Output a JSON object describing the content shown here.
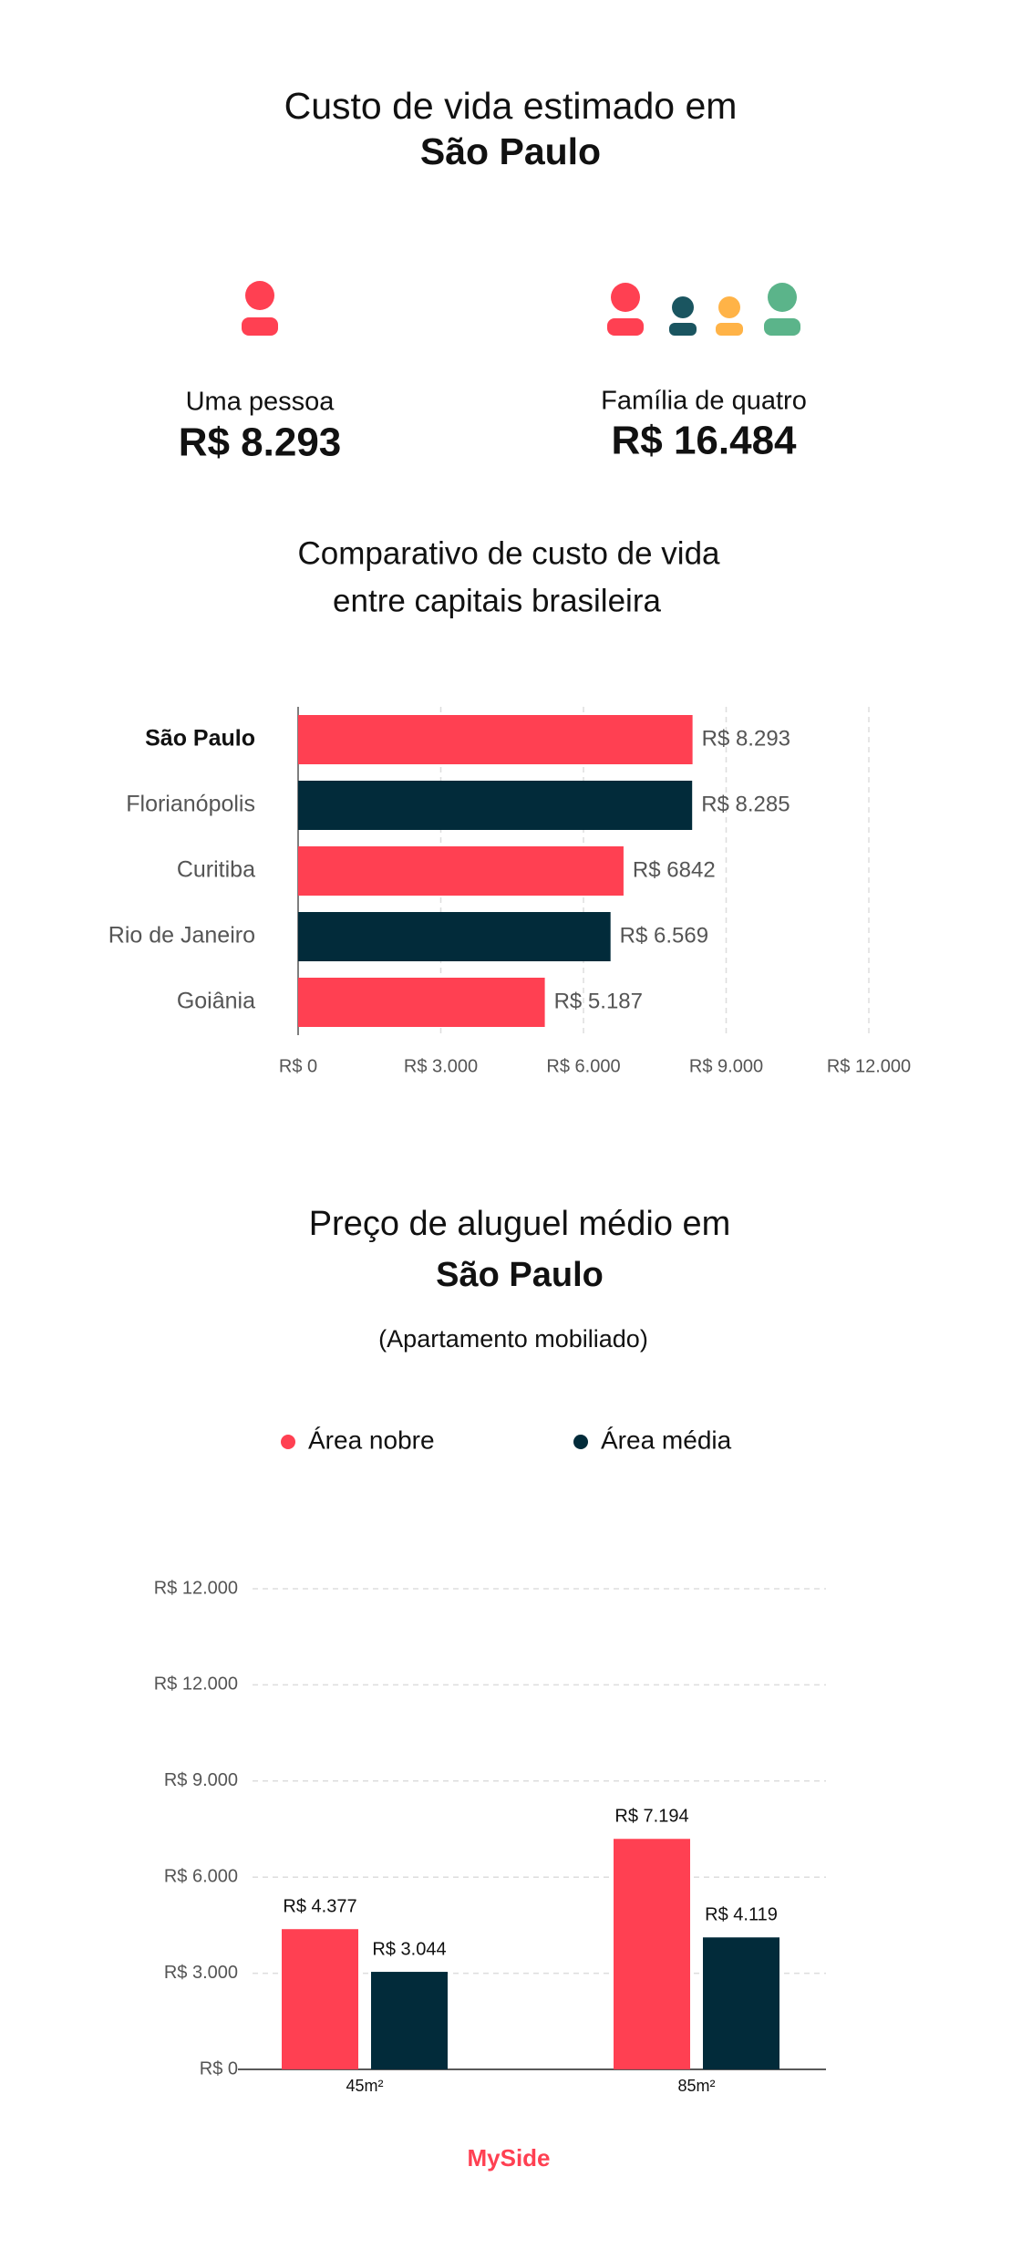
{
  "header": {
    "title": "Custo de vida estimado em",
    "city": "São Paulo"
  },
  "stats": [
    {
      "label": "Uma pessoa",
      "value": "R$ 8.293"
    },
    {
      "label": "Família de quatro",
      "value": "R$ 16.484"
    }
  ],
  "chart_data": [
    {
      "type": "hbar",
      "title": "Comparativo de custo de vida",
      "subtitle": "entre capitais brasileira",
      "categories": [
        "São Paulo",
        "Florianópolis",
        "Curitiba",
        "Rio de Janeiro",
        "Goiânia"
      ],
      "values": [
        8293,
        8285,
        6842,
        6569,
        5187
      ],
      "value_labels": [
        "R$ 8.293",
        "R$ 8.285",
        "R$ 6842",
        "R$ 6.569",
        "R$ 5.187"
      ],
      "colors": [
        "#ff4052",
        "#022b3a",
        "#ff4052",
        "#022b3a",
        "#ff4052"
      ],
      "xlim": [
        0,
        12000
      ],
      "xticks": [
        {
          "value": 0,
          "label": "R$ 0"
        },
        {
          "value": 3000,
          "label": "R$ 3.000"
        },
        {
          "value": 6000,
          "label": "R$ 6.000"
        },
        {
          "value": 9000,
          "label": "R$ 9.000"
        },
        {
          "value": 12000,
          "label": "R$ 12.000"
        }
      ],
      "grid": true
    },
    {
      "type": "bar",
      "title": "Preço de aluguel médio em",
      "subtitle": "São Paulo",
      "note": "(Apartamento mobiliado)",
      "categories": [
        "45m²",
        "85m²"
      ],
      "series": [
        {
          "name": "Área nobre",
          "color": "#ff4052",
          "values": [
            4377,
            7194
          ],
          "value_labels": [
            "R$ 4.377",
            "R$ 7.194"
          ]
        },
        {
          "name": "Área média",
          "color": "#022b3a",
          "values": [
            3044,
            4119
          ],
          "value_labels": [
            "R$ 3.044",
            "R$ 4.119"
          ]
        }
      ],
      "ylim": [
        0,
        15000
      ],
      "ylim_top_label": "R$ 12.000",
      "yticks": [
        {
          "value": 0,
          "label": "R$ 0"
        },
        {
          "value": 3000,
          "label": "R$ 3.000"
        },
        {
          "value": 6000,
          "label": "R$ 6.000"
        },
        {
          "value": 9000,
          "label": "R$ 9.000"
        },
        {
          "value": 12000,
          "label": "R$ 12.000"
        }
      ],
      "grid": true,
      "legend": "top"
    }
  ],
  "footer": {
    "logo": "MySide"
  }
}
